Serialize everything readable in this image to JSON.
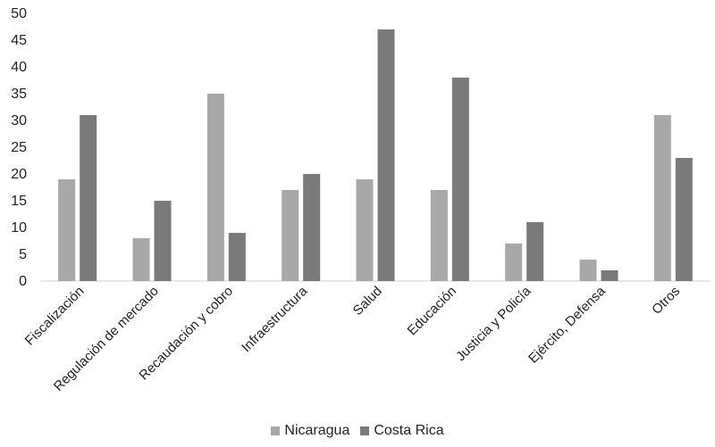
{
  "chart_data": {
    "type": "bar",
    "categories": [
      "Fiscalización",
      "Regulación de mercado",
      "Recaudación y cobro",
      "Infraestructura",
      "Salud",
      "Educación",
      "Justicia y Policía",
      "Ejército, Defensa",
      "Otros"
    ],
    "series": [
      {
        "name": "Nicaragua",
        "color": "#a8a8a8",
        "values": [
          19,
          8,
          35,
          17,
          19,
          17,
          7,
          4,
          31
        ]
      },
      {
        "name": "Costa Rica",
        "color": "#7a7a7a",
        "values": [
          31,
          15,
          9,
          20,
          47,
          38,
          11,
          2,
          23
        ]
      }
    ],
    "ylim": [
      0,
      50
    ],
    "yticks": [
      0,
      5,
      10,
      15,
      20,
      25,
      30,
      35,
      40,
      45,
      50
    ],
    "grid": false,
    "legend_position": "bottom"
  }
}
